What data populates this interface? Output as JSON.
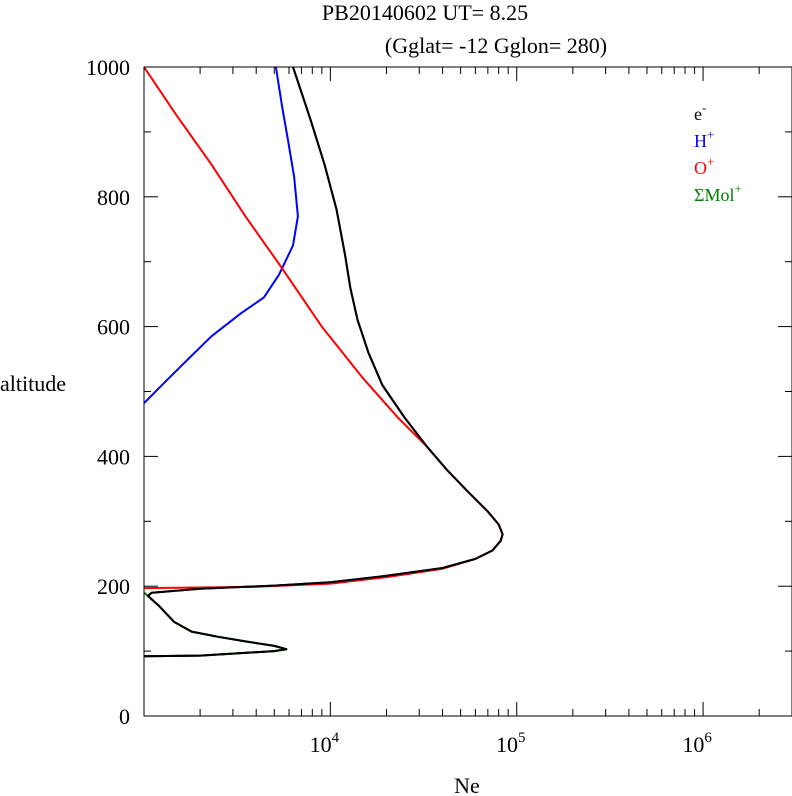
{
  "chart_data": {
    "type": "line",
    "title": "PB20140602   UT=  8.25",
    "subtitle": "(Gglat= -12   Gglon=  280)",
    "xlabel": "Ne",
    "ylabel": "altitude",
    "x_scale": "log",
    "xlim": [
      1000,
      3000000
    ],
    "ylim": [
      0,
      1000
    ],
    "x_ticks": [
      {
        "value": 10000,
        "base": "10",
        "exp": "4"
      },
      {
        "value": 100000,
        "base": "10",
        "exp": "5"
      },
      {
        "value": 1000000,
        "base": "10",
        "exp": "6"
      }
    ],
    "y_ticks": [
      {
        "value": 0,
        "label": "0"
      },
      {
        "value": 200,
        "label": "200"
      },
      {
        "value": 400,
        "label": "400"
      },
      {
        "value": 600,
        "label": "600"
      },
      {
        "value": 800,
        "label": "800"
      },
      {
        "value": 1000,
        "label": "1000"
      }
    ],
    "y_minor_step": 100,
    "legend_position": "top-right",
    "series": [
      {
        "name": "e",
        "sup": "-",
        "color": "#000000",
        "points": [
          [
            1000,
            92
          ],
          [
            2000,
            93
          ],
          [
            5000,
            100
          ],
          [
            5800,
            103
          ],
          [
            5000,
            108
          ],
          [
            3500,
            115
          ],
          [
            2500,
            122
          ],
          [
            1800,
            130
          ],
          [
            1450,
            145
          ],
          [
            1200,
            170
          ],
          [
            1050,
            185
          ],
          [
            1100,
            190
          ],
          [
            2000,
            196
          ],
          [
            5000,
            201
          ],
          [
            10000,
            206
          ],
          [
            20000,
            216
          ],
          [
            40000,
            228
          ],
          [
            60000,
            242
          ],
          [
            74000,
            255
          ],
          [
            82000,
            270
          ],
          [
            84000,
            280
          ],
          [
            80000,
            295
          ],
          [
            70000,
            315
          ],
          [
            55000,
            345
          ],
          [
            42000,
            380
          ],
          [
            33000,
            415
          ],
          [
            25000,
            460
          ],
          [
            19000,
            510
          ],
          [
            16000,
            560
          ],
          [
            14000,
            610
          ],
          [
            12800,
            660
          ],
          [
            12000,
            710
          ],
          [
            10800,
            780
          ],
          [
            9300,
            850
          ],
          [
            7800,
            920
          ],
          [
            6300,
            1000
          ]
        ]
      },
      {
        "name": "H",
        "sup": "+",
        "color": "#0000ff",
        "points": [
          [
            1000,
            482
          ],
          [
            1300,
            515
          ],
          [
            1700,
            548
          ],
          [
            2300,
            585
          ],
          [
            3300,
            620
          ],
          [
            4400,
            645
          ],
          [
            5300,
            680
          ],
          [
            6300,
            725
          ],
          [
            6700,
            770
          ],
          [
            6400,
            830
          ],
          [
            5900,
            890
          ],
          [
            5500,
            940
          ],
          [
            5100,
            1000
          ]
        ]
      },
      {
        "name": "O",
        "sup": "+",
        "color": "#ff0000",
        "points": [
          [
            1000,
            197
          ],
          [
            4000,
            199
          ],
          [
            10000,
            204
          ],
          [
            20000,
            214
          ],
          [
            40000,
            227
          ],
          [
            60000,
            242
          ],
          [
            74000,
            255
          ],
          [
            82000,
            270
          ],
          [
            84000,
            280
          ],
          [
            80000,
            295
          ],
          [
            70000,
            315
          ],
          [
            55000,
            345
          ],
          [
            42000,
            380
          ],
          [
            33000,
            415
          ],
          [
            23000,
            460
          ],
          [
            15000,
            520
          ],
          [
            9000,
            600
          ],
          [
            5500,
            690
          ],
          [
            3500,
            770
          ],
          [
            2300,
            850
          ],
          [
            1500,
            925
          ],
          [
            1000,
            1000
          ]
        ]
      },
      {
        "name": "ΣMol",
        "sup": "+",
        "color": "#008000",
        "points": [
          [
            1000,
            92
          ],
          [
            2000,
            93
          ],
          [
            5000,
            100
          ],
          [
            5800,
            103
          ],
          [
            5000,
            108
          ],
          [
            3500,
            115
          ],
          [
            2500,
            122
          ],
          [
            1800,
            130
          ],
          [
            1450,
            145
          ],
          [
            1200,
            170
          ],
          [
            1050,
            185
          ],
          [
            1000,
            190
          ]
        ]
      }
    ]
  }
}
